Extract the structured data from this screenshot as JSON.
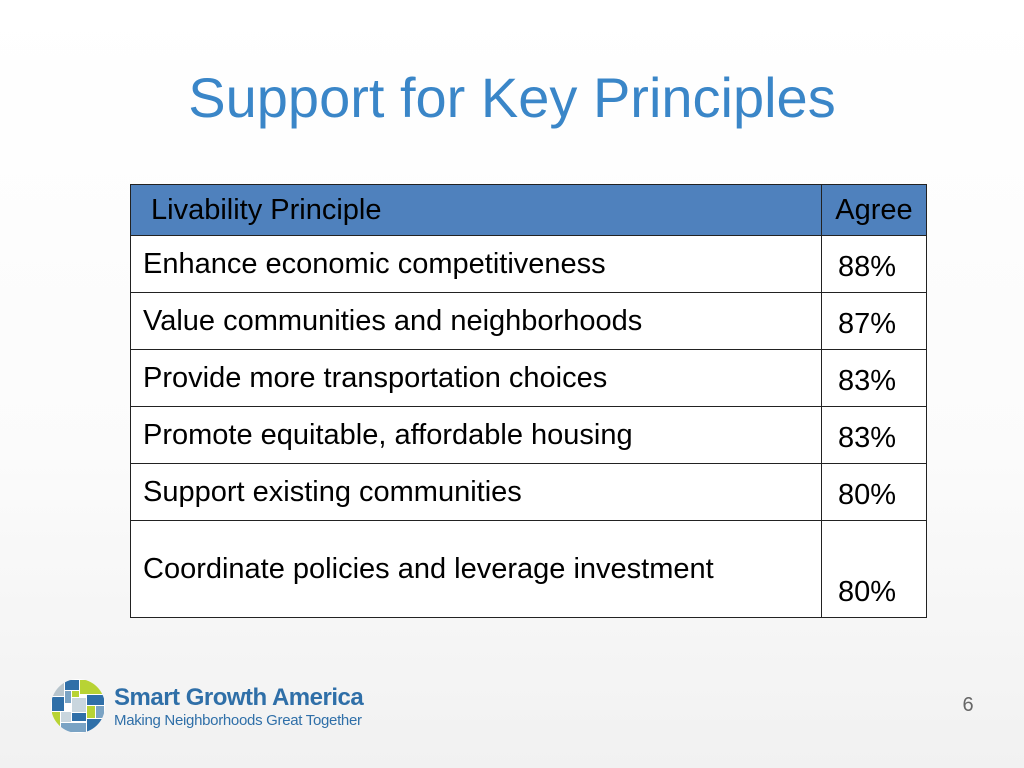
{
  "slide": {
    "title": "Support for Key Principles",
    "page_number": "6"
  },
  "table": {
    "headers": {
      "principle": "Livability Principle",
      "agree": "Agree"
    },
    "rows": [
      {
        "principle": "Enhance economic competitiveness",
        "agree": "88%"
      },
      {
        "principle": "Value communities and neighborhoods",
        "agree": "87%"
      },
      {
        "principle": "Provide more transportation choices",
        "agree": "83%"
      },
      {
        "principle": "Promote equitable, affordable housing",
        "agree": "83%"
      },
      {
        "principle": "Support existing communities",
        "agree": "80%"
      },
      {
        "principle": "Coordinate policies and leverage investment",
        "agree": "80%"
      }
    ]
  },
  "logo": {
    "name": "Smart Growth America",
    "tagline": "Making Neighborhoods Great Together"
  },
  "colors": {
    "title": "#3a86c8",
    "header_fill": "#4f81bd",
    "logo_text": "#2f6fa8"
  }
}
